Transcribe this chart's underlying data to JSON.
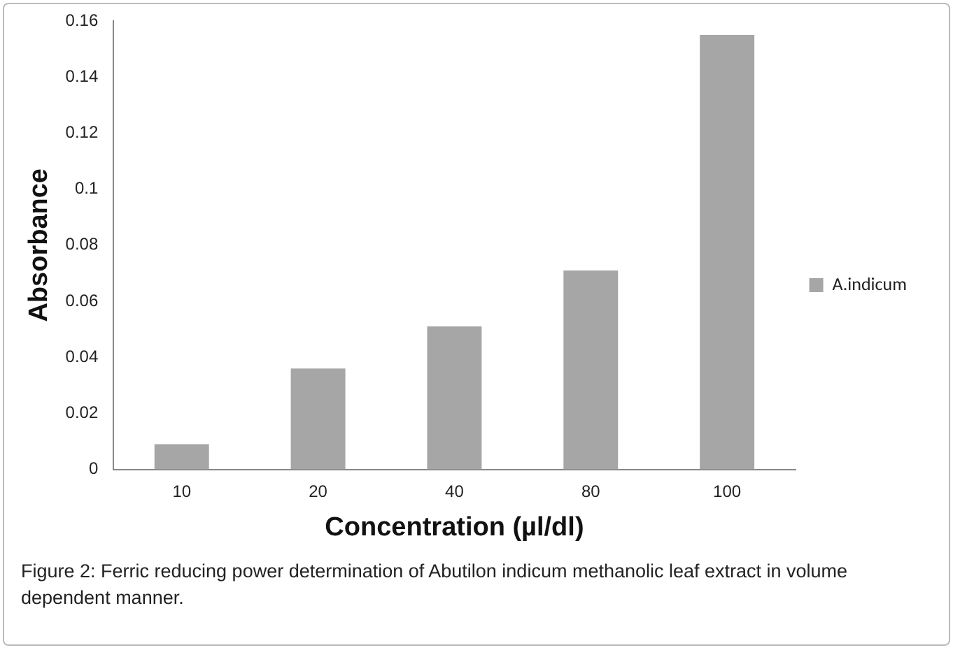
{
  "chart_data": {
    "type": "bar",
    "xlabel": "Concentration (µl/dl)",
    "ylabel": "Absorbance",
    "categories": [
      "10",
      "20",
      "40",
      "80",
      "100"
    ],
    "series": [
      {
        "name": "A.indicum",
        "color": "#a6a6a6",
        "values": [
          0.009,
          0.036,
          0.051,
          0.071,
          0.155
        ]
      }
    ],
    "ylim": [
      0,
      0.16
    ],
    "yticks": [
      0,
      0.02,
      0.04,
      0.06,
      0.08,
      0.1,
      0.12,
      0.14,
      0.16
    ],
    "grid": false,
    "legend": "right",
    "annotations": [
      "Figure 2: Ferric reducing power determination of Abutilon indicum methanolic leaf extract in volume dependent manner."
    ]
  }
}
